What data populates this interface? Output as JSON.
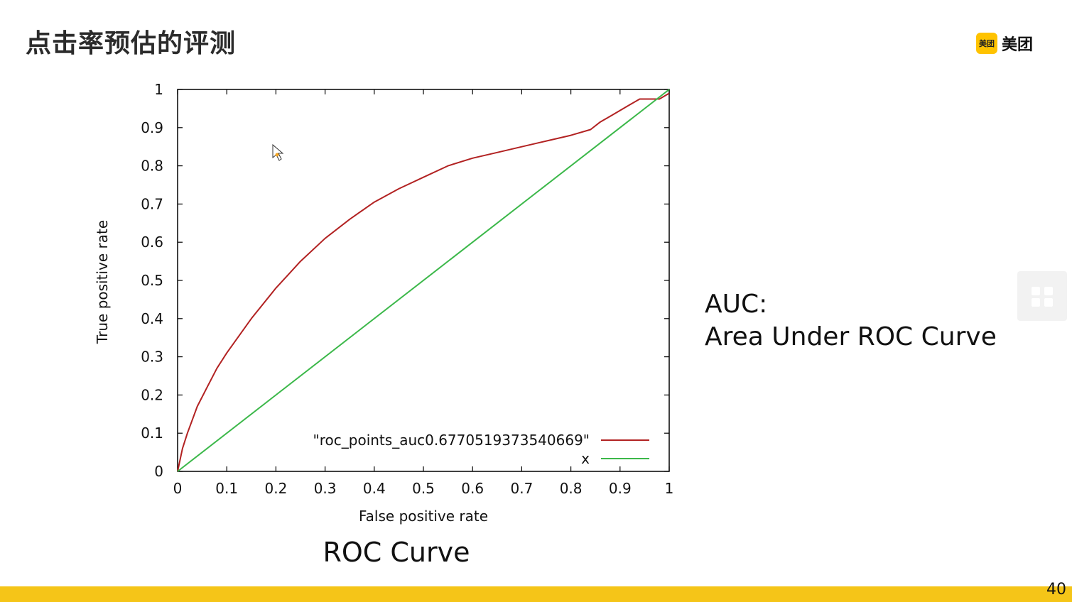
{
  "slide": {
    "title": "点击率预估的评测",
    "logo_badge": "美团",
    "logo_text": "美团",
    "side_note_line1": "AUC:",
    "side_note_line2": "Area Under ROC Curve",
    "page_number": "40"
  },
  "chart_data": {
    "type": "line",
    "title": "",
    "caption": "ROC Curve",
    "xlabel": "False positive rate",
    "ylabel": "True positive rate",
    "xlim": [
      0,
      1
    ],
    "ylim": [
      0,
      1
    ],
    "xticks": [
      "0",
      "0.1",
      "0.2",
      "0.3",
      "0.4",
      "0.5",
      "0.6",
      "0.7",
      "0.8",
      "0.9",
      "1"
    ],
    "yticks": [
      "0",
      "0.1",
      "0.2",
      "0.3",
      "0.4",
      "0.5",
      "0.6",
      "0.7",
      "0.8",
      "0.9",
      "1"
    ],
    "grid": false,
    "legend_position": "bottom-right",
    "series": [
      {
        "name": "\"roc_points_auc0.6770519373540669\"",
        "color": "#b22222",
        "x": [
          0,
          0.01,
          0.02,
          0.04,
          0.06,
          0.08,
          0.1,
          0.15,
          0.2,
          0.25,
          0.3,
          0.35,
          0.4,
          0.45,
          0.5,
          0.55,
          0.6,
          0.65,
          0.7,
          0.75,
          0.8,
          0.84,
          0.86,
          0.88,
          0.9,
          0.92,
          0.94,
          0.96,
          0.98,
          1.0
        ],
        "y": [
          0,
          0.06,
          0.1,
          0.17,
          0.22,
          0.27,
          0.31,
          0.4,
          0.48,
          0.55,
          0.61,
          0.66,
          0.705,
          0.74,
          0.77,
          0.8,
          0.82,
          0.835,
          0.85,
          0.865,
          0.88,
          0.895,
          0.915,
          0.93,
          0.945,
          0.96,
          0.975,
          0.975,
          0.975,
          0.99
        ]
      },
      {
        "name": "x",
        "color": "#3cb84a",
        "x": [
          0,
          1
        ],
        "y": [
          0,
          1
        ]
      }
    ]
  }
}
